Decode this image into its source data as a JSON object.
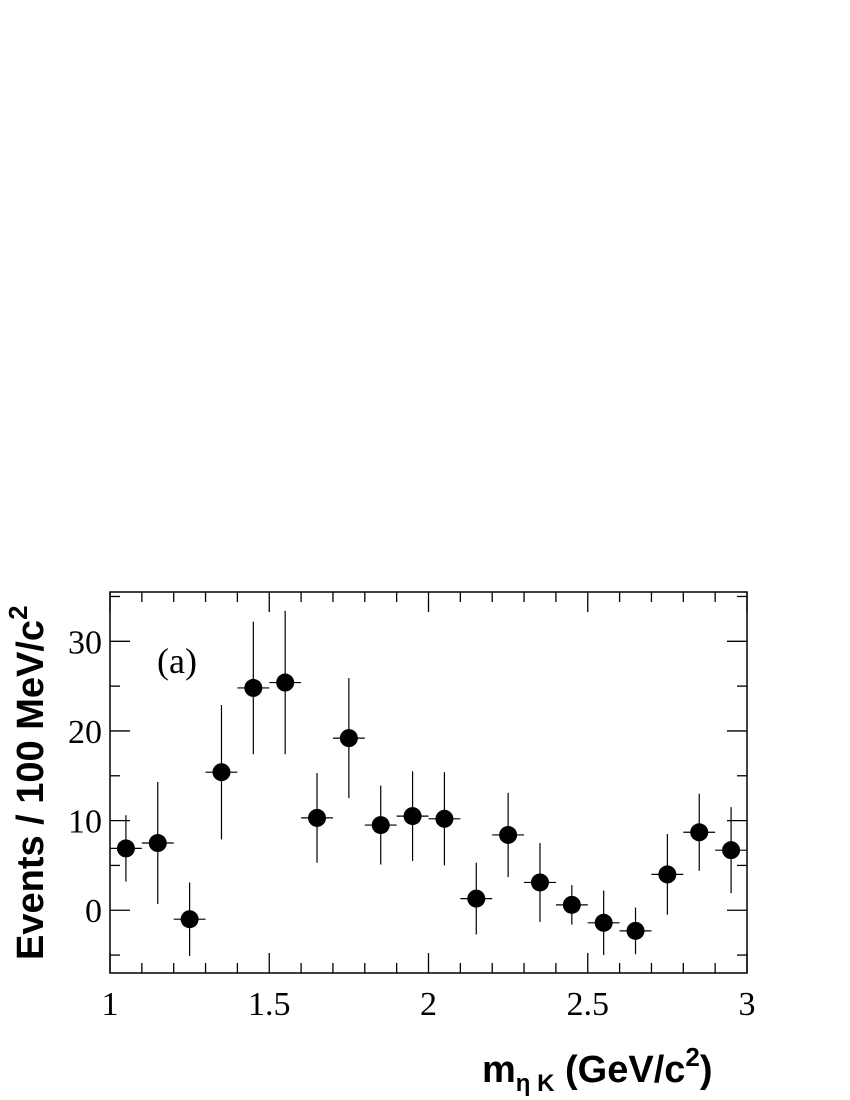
{
  "chart_data": {
    "type": "scatter",
    "panel_label": "(a)",
    "xlabel": {
      "main": "m",
      "sub": "η K",
      "unit_pre": " (GeV/c",
      "unit_sup": "2",
      "unit_post": ")"
    },
    "ylabel": {
      "main": "Events / 100 MeV/c",
      "sup": "2"
    },
    "xlim": [
      1.0,
      3.0
    ],
    "ylim": [
      -7,
      35.5
    ],
    "x_ticks": [
      1,
      1.5,
      2,
      2.5,
      3
    ],
    "x_tick_labels": [
      "1",
      "1.5",
      "2",
      "2.5",
      "3"
    ],
    "y_ticks": [
      0,
      10,
      20,
      30
    ],
    "y_tick_labels": [
      "0",
      "10",
      "20",
      "30"
    ],
    "bin_width": 0.1,
    "series": [
      {
        "x": [
          1.05,
          1.15,
          1.25,
          1.35,
          1.45,
          1.55,
          1.65,
          1.75,
          1.85,
          1.95,
          2.05,
          2.15,
          2.25,
          2.35,
          2.45,
          2.55,
          2.65,
          2.75,
          2.85,
          2.95
        ],
        "y": [
          6.9,
          7.5,
          -1.0,
          15.4,
          24.8,
          25.4,
          10.3,
          19.2,
          9.5,
          10.5,
          10.2,
          1.3,
          8.4,
          3.1,
          0.6,
          -1.4,
          -2.3,
          4.0,
          8.7,
          6.7
        ],
        "yerr": [
          3.7,
          6.8,
          4.1,
          7.5,
          7.4,
          8.0,
          5.0,
          6.7,
          4.4,
          5.0,
          5.2,
          4.0,
          4.7,
          4.4,
          2.2,
          3.6,
          2.6,
          4.5,
          4.3,
          4.8
        ]
      }
    ]
  }
}
